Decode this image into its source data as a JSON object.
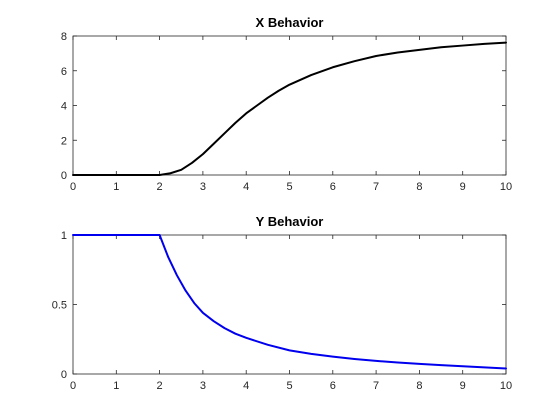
{
  "chart_data": [
    {
      "type": "line",
      "title": "X Behavior",
      "xlabel": "",
      "ylabel": "",
      "xlim": [
        0,
        10
      ],
      "ylim": [
        0,
        8
      ],
      "xticks": [
        0,
        1,
        2,
        3,
        4,
        5,
        6,
        7,
        8,
        9,
        10
      ],
      "yticks": [
        0,
        2,
        4,
        6,
        8
      ],
      "xtick_labels": [
        "0",
        "1",
        "2",
        "3",
        "4",
        "5",
        "6",
        "7",
        "8",
        "9",
        "10"
      ],
      "ytick_labels": [
        "0",
        "2",
        "4",
        "6",
        "8"
      ],
      "grid": false,
      "series": [
        {
          "color": "#000000",
          "x": [
            0,
            1,
            2,
            2.25,
            2.5,
            2.75,
            3,
            3.25,
            3.5,
            3.75,
            4,
            4.25,
            4.5,
            4.75,
            5,
            5.5,
            6,
            6.5,
            7,
            7.5,
            8,
            8.5,
            9,
            9.5,
            10
          ],
          "y": [
            0,
            0,
            0,
            0.1,
            0.3,
            0.7,
            1.2,
            1.8,
            2.4,
            3.0,
            3.55,
            4.0,
            4.45,
            4.85,
            5.2,
            5.75,
            6.2,
            6.55,
            6.85,
            7.05,
            7.2,
            7.35,
            7.45,
            7.55,
            7.62
          ]
        }
      ]
    },
    {
      "type": "line",
      "title": "Y Behavior",
      "xlabel": "",
      "ylabel": "",
      "xlim": [
        0,
        10
      ],
      "ylim": [
        0,
        1
      ],
      "xticks": [
        0,
        1,
        2,
        3,
        4,
        5,
        6,
        7,
        8,
        9,
        10
      ],
      "yticks": [
        0,
        0.5,
        1
      ],
      "xtick_labels": [
        "0",
        "1",
        "2",
        "3",
        "4",
        "5",
        "6",
        "7",
        "8",
        "9",
        "10"
      ],
      "ytick_labels": [
        "0",
        "0.5",
        "1"
      ],
      "grid": false,
      "series": [
        {
          "color": "#0000ee",
          "x": [
            0,
            1,
            2,
            2.2,
            2.4,
            2.6,
            2.8,
            3,
            3.25,
            3.5,
            3.75,
            4,
            4.5,
            5,
            5.5,
            6,
            6.5,
            7,
            7.5,
            8,
            8.5,
            9,
            9.5,
            10
          ],
          "y": [
            1,
            1,
            1,
            0.84,
            0.71,
            0.6,
            0.51,
            0.44,
            0.38,
            0.33,
            0.29,
            0.26,
            0.21,
            0.17,
            0.145,
            0.125,
            0.108,
            0.094,
            0.083,
            0.073,
            0.064,
            0.056,
            0.048,
            0.04
          ]
        }
      ]
    }
  ]
}
